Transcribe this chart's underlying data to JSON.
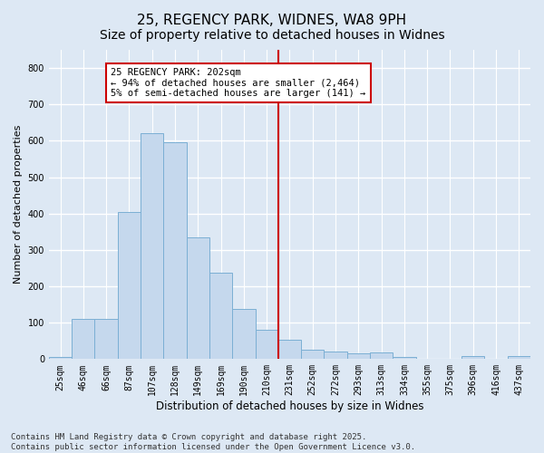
{
  "title": "25, REGENCY PARK, WIDNES, WA8 9PH",
  "subtitle": "Size of property relative to detached houses in Widnes",
  "xlabel": "Distribution of detached houses by size in Widnes",
  "ylabel": "Number of detached properties",
  "categories": [
    "25sqm",
    "46sqm",
    "66sqm",
    "87sqm",
    "107sqm",
    "128sqm",
    "149sqm",
    "169sqm",
    "190sqm",
    "210sqm",
    "231sqm",
    "252sqm",
    "272sqm",
    "293sqm",
    "313sqm",
    "334sqm",
    "355sqm",
    "375sqm",
    "396sqm",
    "416sqm",
    "437sqm"
  ],
  "values": [
    5,
    110,
    110,
    405,
    620,
    597,
    335,
    237,
    137,
    80,
    52,
    25,
    20,
    17,
    18,
    5,
    0,
    0,
    8,
    0,
    8
  ],
  "bar_color": "#c5d8ed",
  "bar_edge_color": "#7bafd4",
  "vline_x": 9.5,
  "vline_color": "#cc0000",
  "annotation_text": "25 REGENCY PARK: 202sqm\n← 94% of detached houses are smaller (2,464)\n5% of semi-detached houses are larger (141) →",
  "annotation_box_color": "#ffffff",
  "annotation_box_edge": "#cc0000",
  "ylim": [
    0,
    850
  ],
  "yticks": [
    0,
    100,
    200,
    300,
    400,
    500,
    600,
    700,
    800
  ],
  "bg_color": "#dde8f4",
  "grid_color": "#ffffff",
  "footer_text": "Contains HM Land Registry data © Crown copyright and database right 2025.\nContains public sector information licensed under the Open Government Licence v3.0.",
  "title_fontsize": 11,
  "xlabel_fontsize": 8.5,
  "ylabel_fontsize": 8,
  "tick_fontsize": 7,
  "annotation_fontsize": 7.5,
  "footer_fontsize": 6.5
}
